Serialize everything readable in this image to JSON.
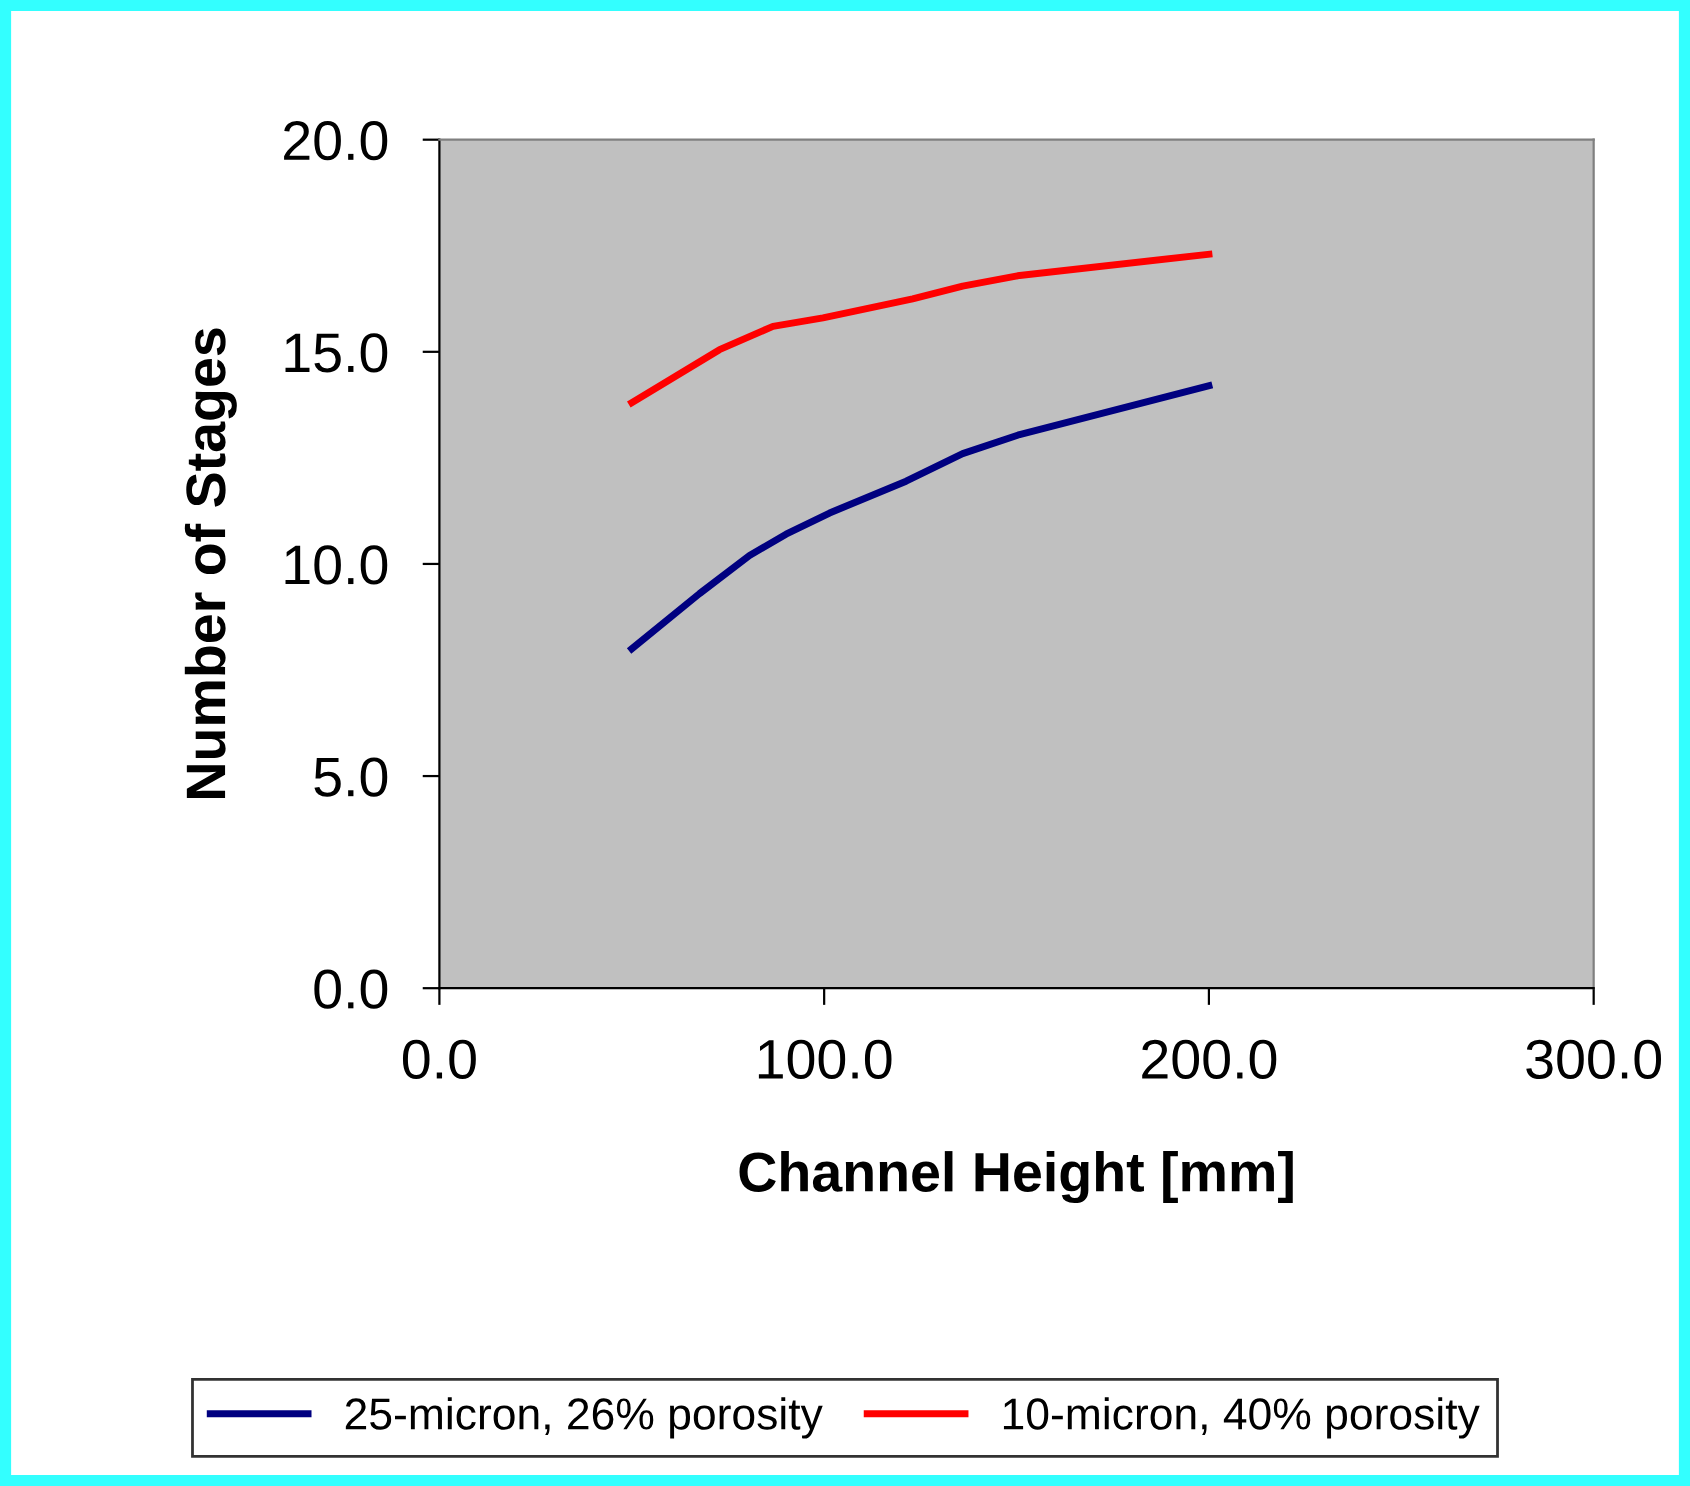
{
  "chart_data": {
    "type": "line",
    "xlabel": "Channel Height [mm]",
    "ylabel": "Number of Stages",
    "xlim": [
      0,
      300
    ],
    "xticks": [
      {
        "value": 0,
        "label": "0.0"
      },
      {
        "value": 100,
        "label": "100.0"
      },
      {
        "value": 200,
        "label": "200.0"
      },
      {
        "value": 300,
        "label": "300.0"
      }
    ],
    "ylim": [
      0,
      20
    ],
    "yticks": [
      {
        "value": 0,
        "label": "0.0"
      },
      {
        "value": 5,
        "label": "5.0"
      },
      {
        "value": 10,
        "label": "10.0"
      },
      {
        "value": 15,
        "label": "15.0"
      },
      {
        "value": 20,
        "label": "20.0"
      }
    ],
    "grid": false,
    "legend": "bottom",
    "marker": "none",
    "line_style": "solid",
    "series": [
      {
        "name": "25-micron, 26% porosity",
        "color": "#000080",
        "x": [
          50,
          67.6,
          80.6,
          90.1,
          101.4,
          121.3,
          136,
          150.8,
          200
        ],
        "values": [
          8.0,
          9.3,
          10.2,
          10.7,
          11.2,
          11.95,
          12.6,
          13.05,
          14.2
        ]
      },
      {
        "name": "10-micron, 40% porosity",
        "color": "#ff0000",
        "x": [
          50,
          72.8,
          86.7,
          99.7,
          123,
          136,
          150.8,
          200
        ],
        "values": [
          13.8,
          15.05,
          15.6,
          15.8,
          16.25,
          16.55,
          16.8,
          17.3
        ]
      }
    ]
  }
}
